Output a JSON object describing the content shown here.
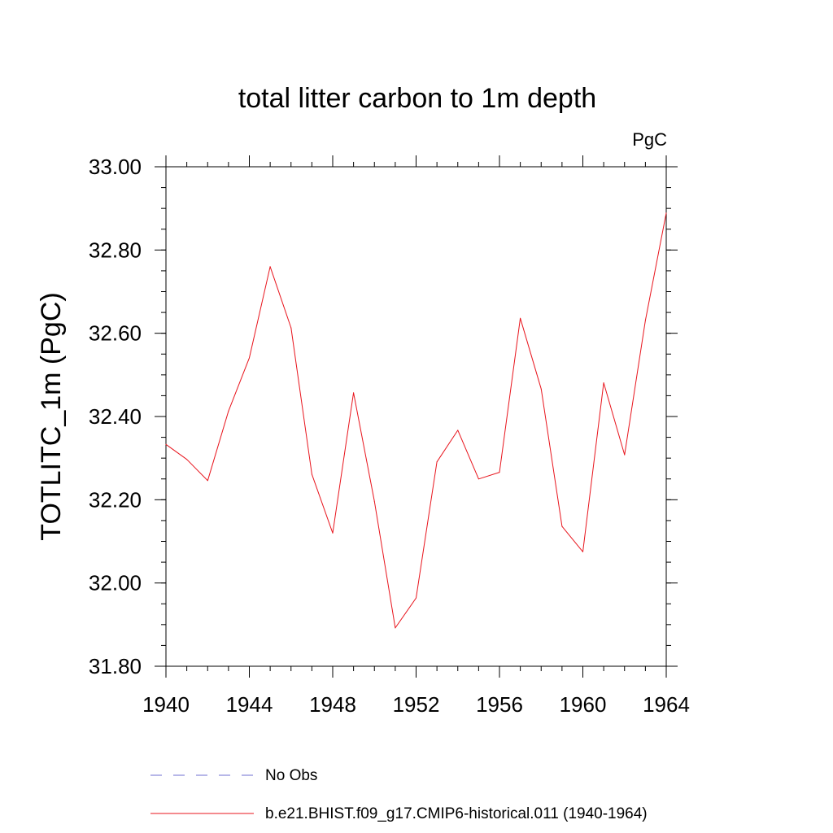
{
  "chart_data": {
    "type": "line",
    "title": "total litter carbon to 1m depth",
    "units_label": "PgC",
    "xlabel": "",
    "ylabel": "TOTLITC_1m  (PgC)",
    "xlim": [
      1940,
      1964
    ],
    "ylim": [
      31.8,
      33.0
    ],
    "xticks": [
      1940,
      1944,
      1948,
      1952,
      1956,
      1960,
      1964
    ],
    "xtick_labels": [
      "1940",
      "1944",
      "1948",
      "1952",
      "1956",
      "1960",
      "1964"
    ],
    "yticks": [
      31.8,
      32.0,
      32.2,
      32.4,
      32.6,
      32.8,
      33.0
    ],
    "ytick_labels": [
      "31.80",
      "32.00",
      "32.20",
      "32.40",
      "32.60",
      "32.80",
      "33.00"
    ],
    "grid": false,
    "legend_position": "bottom",
    "legend": [
      {
        "label": "No Obs",
        "color": "#6f6fd0",
        "style": "dashed"
      },
      {
        "label": "b.e21.BHIST.f09_g17.CMIP6-historical.011 (1940-1964)",
        "color": "#e8141c",
        "style": "solid"
      }
    ],
    "series": [
      {
        "name": "b.e21.BHIST.f09_g17.CMIP6-historical.011 (1940-1964)",
        "color": "#e8141c",
        "x": [
          1940,
          1941,
          1942,
          1943,
          1944,
          1945,
          1946,
          1947,
          1948,
          1949,
          1950,
          1951,
          1952,
          1953,
          1954,
          1955,
          1956,
          1957,
          1958,
          1959,
          1960,
          1961,
          1962,
          1963,
          1964
        ],
        "y": [
          32.333,
          32.297,
          32.246,
          32.413,
          32.541,
          32.76,
          32.613,
          32.261,
          32.12,
          32.457,
          32.196,
          31.892,
          31.964,
          32.291,
          32.367,
          32.25,
          32.266,
          32.636,
          32.466,
          32.136,
          32.075,
          32.481,
          32.308,
          32.631,
          32.889
        ]
      }
    ]
  }
}
